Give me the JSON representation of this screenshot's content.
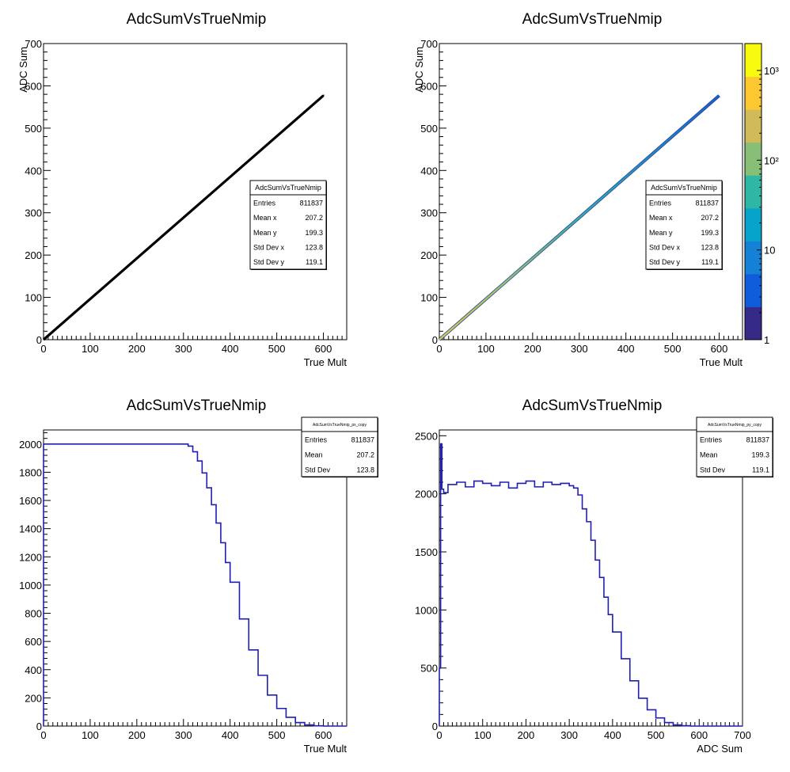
{
  "colors": {
    "frame": "#000000",
    "hist": "#1f1fb3",
    "scatter_bw": "#000000"
  },
  "chart_data": [
    {
      "type": "scatter",
      "title": "AdcSumVsTrueNmip",
      "xlabel": "True Mult",
      "ylabel": "ADC Sum",
      "xlim": [
        0,
        650
      ],
      "ylim": [
        0,
        700
      ],
      "xticks": [
        "0",
        "100",
        "200",
        "300",
        "400",
        "500",
        "600"
      ],
      "yticks": [
        "0",
        "100",
        "200",
        "300",
        "400",
        "500",
        "600",
        "700"
      ],
      "trend": {
        "x": [
          0,
          600
        ],
        "y": [
          0,
          577
        ]
      },
      "stats": {
        "name": "AdcSumVsTrueNmip",
        "rows": [
          {
            "label": "Entries",
            "value": "811837"
          },
          {
            "label": "Mean x",
            "value": "207.2"
          },
          {
            "label": "Mean y",
            "value": "199.3"
          },
          {
            "label": "Std Dev x",
            "value": "123.8"
          },
          {
            "label": "Std Dev y",
            "value": "119.1"
          }
        ]
      }
    },
    {
      "type": "heatmap",
      "title": "AdcSumVsTrueNmip",
      "xlabel": "True Mult",
      "ylabel": "ADC Sum",
      "xlim": [
        0,
        650
      ],
      "ylim": [
        0,
        700
      ],
      "xticks": [
        "0",
        "100",
        "200",
        "300",
        "400",
        "500",
        "600"
      ],
      "yticks": [
        "0",
        "100",
        "200",
        "300",
        "400",
        "500",
        "600",
        "700"
      ],
      "trend": {
        "x": [
          0,
          600
        ],
        "y": [
          0,
          577
        ]
      },
      "color_scale": "log",
      "colorbar_ticks": [
        "1",
        "10",
        "10²",
        "10³"
      ],
      "colorbar_colors": [
        "#352a87",
        "#0f5cdd",
        "#1481d6",
        "#06a4ca",
        "#2eb7a4",
        "#87bf77",
        "#d1bb59",
        "#fec832",
        "#f9fb0e"
      ],
      "stats": {
        "name": "AdcSumVsTrueNmip",
        "rows": [
          {
            "label": "Entries",
            "value": "811837"
          },
          {
            "label": "Mean x",
            "value": "207.2"
          },
          {
            "label": "Mean y",
            "value": "199.3"
          },
          {
            "label": "Std Dev x",
            "value": "123.8"
          },
          {
            "label": "Std Dev y",
            "value": "119.1"
          }
        ]
      }
    },
    {
      "type": "line",
      "title": "AdcSumVsTrueNmip",
      "xlabel": "True Mult",
      "ylabel": "",
      "xlim": [
        0,
        650
      ],
      "ylim": [
        0,
        2100
      ],
      "xticks": [
        "0",
        "100",
        "200",
        "300",
        "400",
        "500",
        "600"
      ],
      "yticks": [
        "0",
        "200",
        "400",
        "600",
        "800",
        "1000",
        "1200",
        "1400",
        "1600",
        "1800",
        "2000"
      ],
      "x": [
        0,
        300,
        310,
        320,
        330,
        340,
        350,
        360,
        370,
        380,
        390,
        400,
        420,
        440,
        460,
        480,
        500,
        520,
        540,
        560,
        580,
        600
      ],
      "y": [
        2000,
        2000,
        1985,
        1945,
        1880,
        1795,
        1690,
        1570,
        1440,
        1300,
        1160,
        1020,
        760,
        540,
        360,
        220,
        125,
        62,
        25,
        8,
        2,
        0
      ],
      "stats": {
        "name": "AdcSumVsTrueNmip_px_copy",
        "rows": [
          {
            "label": "Entries",
            "value": "811837"
          },
          {
            "label": "Mean",
            "value": "207.2"
          },
          {
            "label": "Std Dev",
            "value": "123.8"
          }
        ]
      }
    },
    {
      "type": "line",
      "title": "AdcSumVsTrueNmip",
      "xlabel": "ADC Sum",
      "ylabel": "",
      "xlim": [
        0,
        700
      ],
      "ylim": [
        0,
        2550
      ],
      "xticks": [
        "0",
        "100",
        "200",
        "300",
        "400",
        "500",
        "600",
        "700"
      ],
      "yticks": [
        "0",
        "500",
        "1000",
        "1500",
        "2000",
        "2500"
      ],
      "x": [
        0,
        3,
        6,
        10,
        20,
        40,
        60,
        80,
        100,
        120,
        140,
        160,
        180,
        200,
        220,
        240,
        260,
        280,
        300,
        310,
        320,
        330,
        340,
        350,
        360,
        370,
        380,
        390,
        400,
        420,
        440,
        460,
        480,
        500,
        520,
        540,
        560,
        580
      ],
      "y": [
        500,
        2430,
        2040,
        2010,
        2080,
        2100,
        2060,
        2110,
        2090,
        2070,
        2100,
        2050,
        2090,
        2110,
        2060,
        2100,
        2080,
        2090,
        2070,
        2050,
        1990,
        1870,
        1760,
        1600,
        1430,
        1280,
        1110,
        960,
        810,
        580,
        390,
        240,
        140,
        70,
        30,
        10,
        3,
        0
      ],
      "stats": {
        "name": "AdcSumVsTrueNmip_py_copy",
        "rows": [
          {
            "label": "Entries",
            "value": "811837"
          },
          {
            "label": "Mean",
            "value": "199.3"
          },
          {
            "label": "Std Dev",
            "value": "119.1"
          }
        ]
      }
    }
  ]
}
